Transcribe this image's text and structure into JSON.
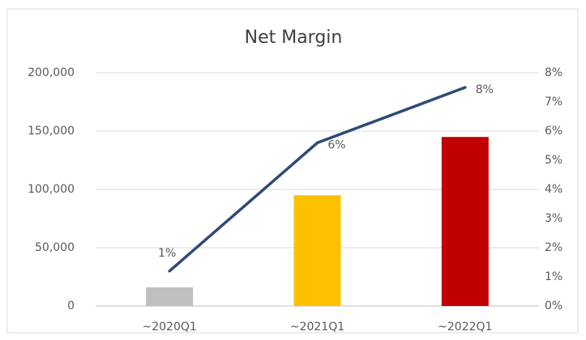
{
  "chart_data": {
    "type": "combo",
    "title": "Net Margin",
    "categories": [
      "~2020Q1",
      "~2021Q1",
      "~2022Q1"
    ],
    "series": [
      {
        "type": "bar",
        "values": [
          16000,
          95000,
          145000
        ],
        "colors": [
          "#bfbfbf",
          "#ffc000",
          "#c00000"
        ]
      },
      {
        "type": "line",
        "axis": "y2",
        "color": "#2e4a75",
        "values": [
          1.2,
          5.6,
          7.5
        ],
        "value_labels": [
          "1%",
          "6%",
          "8%"
        ]
      }
    ],
    "ylim": [
      0,
      200000
    ],
    "yticks": [
      0,
      {
        "value": 50000,
        "label": "50,000"
      },
      {
        "value": 100000,
        "label": "100,000"
      },
      {
        "value": 150000,
        "label": "150,000"
      },
      {
        "value": 200000,
        "label": "200,000"
      }
    ],
    "y2lim": [
      0,
      8
    ],
    "y2ticks": [
      {
        "value": 0,
        "label": "0%"
      },
      {
        "value": 1,
        "label": "1%"
      },
      {
        "value": 2,
        "label": "2%"
      },
      {
        "value": 3,
        "label": "3%"
      },
      {
        "value": 4,
        "label": "4%"
      },
      {
        "value": 5,
        "label": "5%"
      },
      {
        "value": 6,
        "label": "6%"
      },
      {
        "value": 7,
        "label": "7%"
      },
      {
        "value": 8,
        "label": "8%"
      }
    ],
    "grid": true
  }
}
